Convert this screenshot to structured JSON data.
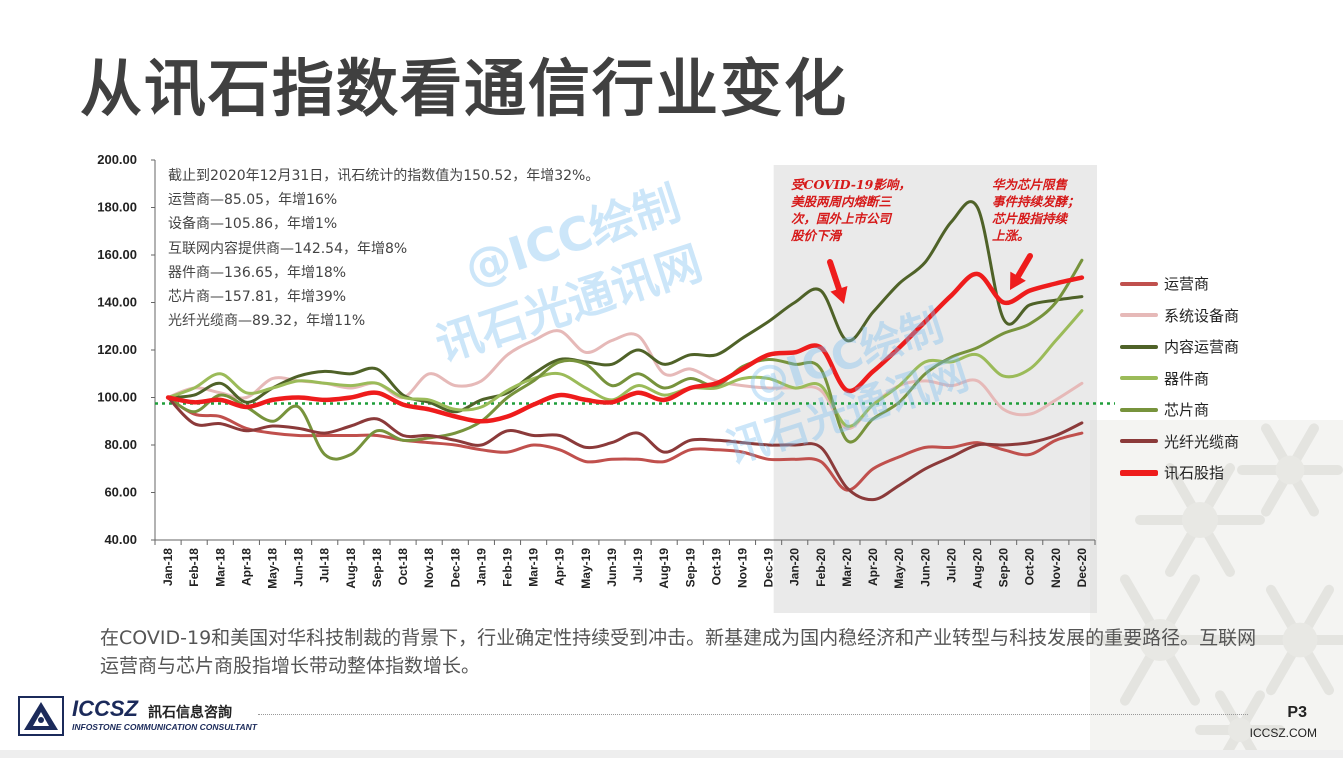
{
  "title": "从讯石指数看通信行业变化",
  "notes": [
    "截止到2020年12月31日，讯石统计的指数值为150.52，年增32%。",
    "运营商—85.05，年增16%",
    "设备商—105.86，年增1%",
    "互联网内容提供商—142.54，年增8%",
    "器件商—136.65，年增18%",
    "芯片商—157.81，年增39%",
    "光纤光缆商—89.32，年增11%"
  ],
  "annotations": [
    {
      "lines": [
        "受COVID-19影响，",
        "美股两周内熔断三",
        "次，国外上市公司",
        "股价下滑"
      ]
    },
    {
      "lines": [
        "华为芯片限售",
        "事件持续发酵；",
        "芯片股指持续",
        "上涨。"
      ]
    }
  ],
  "watermarks": [
    "@ICC绘制",
    "讯石光通讯网"
  ],
  "summary": "在COVID-19和美国对华科技制裁的背景下，行业确定性持续受到冲击。新基建成为国内稳经济和产业转型与科技发展的重要路径。互联网运营商与芯片商股指增长带动整体指数增长。",
  "footer": {
    "brand": "ICCSZ",
    "brand_cn": "訊石信息咨詢",
    "brand_en": "INFOSTONE COMMUNICATION CONSULTANT",
    "page": "P3",
    "site": "ICCSZ.COM"
  },
  "chart_data": {
    "type": "line",
    "ylim": [
      40,
      200
    ],
    "yticks": [
      "40.00",
      "60.00",
      "80.00",
      "100.00",
      "120.00",
      "140.00",
      "160.00",
      "180.00",
      "200.00"
    ],
    "reference_line": 97.5,
    "categories": [
      "Jan-18",
      "Feb-18",
      "Mar-18",
      "Apr-18",
      "May-18",
      "Jun-18",
      "Jul-18",
      "Aug-18",
      "Sep-18",
      "Oct-18",
      "Nov-18",
      "Dec-18",
      "Jan-19",
      "Feb-19",
      "Mar-19",
      "Apr-19",
      "May-19",
      "Jun-19",
      "Jul-19",
      "Aug-19",
      "Sep-19",
      "Oct-19",
      "Nov-19",
      "Dec-19",
      "Jan-20",
      "Feb-20",
      "Mar-20",
      "Apr-20",
      "May-20",
      "Jun-20",
      "Jul-20",
      "Aug-20",
      "Sep-20",
      "Oct-20",
      "Nov-20",
      "Dec-20"
    ],
    "highlight_range": [
      "Jan-20",
      "Dec-20"
    ],
    "series": [
      {
        "name": "运营商",
        "color": "#c0504d",
        "width": 3,
        "values": [
          100,
          93,
          92,
          87,
          85,
          84,
          84,
          84,
          84,
          82,
          81,
          80,
          78,
          77,
          80,
          78,
          73,
          74,
          74,
          73,
          78,
          78,
          77,
          74,
          74,
          73,
          61,
          70,
          75,
          79,
          79,
          81,
          78,
          76,
          82,
          85
        ]
      },
      {
        "name": "系统设备商",
        "color": "#e6b9b8",
        "width": 3,
        "values": [
          100,
          104,
          102,
          100,
          108,
          107,
          106,
          104,
          106,
          100,
          110,
          105,
          107,
          118,
          124,
          128,
          119,
          124,
          126,
          110,
          112,
          107,
          105,
          104,
          104,
          103,
          87,
          97,
          105,
          107,
          105,
          107,
          95,
          93,
          99,
          106
        ]
      },
      {
        "name": "内容运营商",
        "color": "#4f6228",
        "width": 3,
        "values": [
          100,
          101,
          106,
          98,
          104,
          109,
          111,
          110,
          112,
          101,
          98,
          94,
          99,
          102,
          110,
          116,
          115,
          114,
          120,
          114,
          118,
          118,
          125,
          132,
          140,
          145,
          124,
          136,
          148,
          157,
          174,
          180,
          133,
          139,
          141,
          142.5
        ]
      },
      {
        "name": "器件商",
        "color": "#9bbb59",
        "width": 3,
        "values": [
          100,
          104,
          110,
          102,
          104,
          107,
          106,
          105,
          106,
          100,
          99,
          95,
          96,
          103,
          108,
          110,
          104,
          99,
          105,
          101,
          104,
          104,
          108,
          108,
          104,
          105,
          88,
          97,
          105,
          115,
          115,
          118,
          109,
          112,
          124,
          136.6
        ]
      },
      {
        "name": "芯片商",
        "color": "#77933c",
        "width": 3,
        "values": [
          100,
          94,
          101,
          96,
          90,
          96,
          76,
          76,
          86,
          82,
          83,
          85,
          90,
          100,
          107,
          115,
          114,
          105,
          110,
          104,
          108,
          105,
          113,
          116,
          114,
          112,
          82,
          91,
          98,
          110,
          117,
          121,
          127,
          131,
          140,
          157.8
        ]
      },
      {
        "name": "光纤光缆商",
        "color": "#8b3a3a",
        "width": 3,
        "values": [
          100,
          89,
          89,
          86,
          88,
          87,
          85,
          88,
          91,
          84,
          84,
          82,
          80,
          86,
          84,
          84,
          79,
          81,
          85,
          77,
          82,
          82,
          81,
          80,
          80,
          79,
          62,
          57,
          63,
          70,
          75,
          80,
          80,
          81,
          84,
          89.3
        ]
      },
      {
        "name": "讯石股指",
        "color": "#ee1c1c",
        "width": 4.5,
        "values": [
          100,
          98,
          99,
          96,
          99,
          100,
          99,
          100,
          102,
          97,
          95,
          92,
          90,
          92,
          97,
          101,
          99,
          98,
          102,
          99,
          104,
          106,
          112,
          118,
          119,
          121,
          103,
          111,
          121,
          132,
          143,
          152,
          140,
          145,
          148,
          150.5
        ]
      }
    ]
  }
}
